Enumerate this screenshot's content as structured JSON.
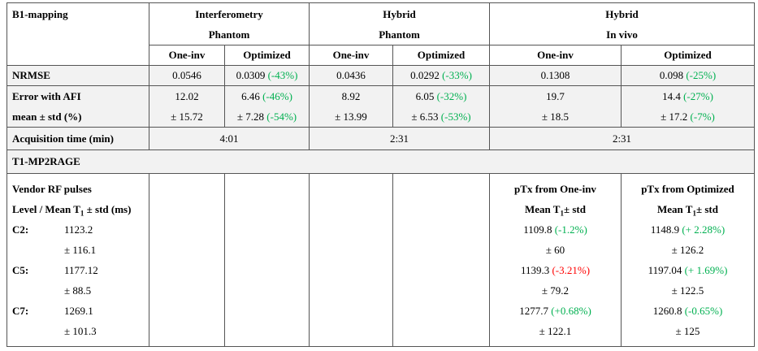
{
  "header": {
    "title": "B1-mapping",
    "groups": [
      {
        "line1": "Interferometry",
        "line2": "Phantom"
      },
      {
        "line1": "Hybrid",
        "line2": "Phantom"
      },
      {
        "line1": "Hybrid",
        "line2": "In vivo"
      }
    ],
    "subheaders": [
      "One-inv",
      "Optimized",
      "One-inv",
      "Optimized",
      "One-inv",
      "Optimized"
    ]
  },
  "nrmse": {
    "label": "NRMSE",
    "cells": [
      {
        "value": "0.0546"
      },
      {
        "value": "0.0309",
        "change": {
          "text": "(-43%)",
          "color": "#00b050"
        }
      },
      {
        "value": "0.0436"
      },
      {
        "value": "0.0292",
        "change": {
          "text": "(-33%)",
          "color": "#00b050"
        }
      },
      {
        "value": "0.1308"
      },
      {
        "value": "0.098",
        "change": {
          "text": "(-25%)",
          "color": "#00b050"
        }
      }
    ]
  },
  "afi_error": {
    "label_line1": "Error with AFI",
    "label_line2": "mean ± std (%)",
    "cells": [
      {
        "mean": "12.02",
        "std": "± 15.72"
      },
      {
        "mean": "6.46",
        "mean_change": {
          "text": "(-46%)",
          "color": "#00b050"
        },
        "std": "± 7.28",
        "std_change": {
          "text": "(-54%)",
          "color": "#00b050"
        }
      },
      {
        "mean": "8.92",
        "std": "± 13.99"
      },
      {
        "mean": "6.05",
        "mean_change": {
          "text": "(-32%)",
          "color": "#00b050"
        },
        "std": "± 6.53",
        "std_change": {
          "text": "(-53%)",
          "color": "#00b050"
        }
      },
      {
        "mean": "19.7",
        "std": "± 18.5"
      },
      {
        "mean": "14.4",
        "mean_change": {
          "text": "(-27%)",
          "color": "#00b050"
        },
        "std": "± 17.2",
        "std_change": {
          "text": "(-7%)",
          "color": "#00b050"
        }
      }
    ]
  },
  "acquisition": {
    "label": "Acquisition time (min)",
    "values": [
      "4:01",
      "2:31",
      "2:31"
    ]
  },
  "t1": {
    "title": "T1-MP2RAGE",
    "vendor_label": "Vendor RF pulses",
    "level_label": {
      "pre": "Level / Mean T",
      "sub": "1",
      "post": " ± std (ms)"
    },
    "ptx_headers": [
      {
        "line1": "pTx from One-inv",
        "line2": {
          "pre": "Mean T",
          "sub": "1",
          "post": "± std"
        }
      },
      {
        "line1": "pTx from Optimized",
        "line2": {
          "pre": "Mean T",
          "sub": "1",
          "post": "± std"
        }
      }
    ],
    "levels": [
      {
        "name": "C2:",
        "vendor_mean": "1123.2",
        "vendor_std": "± 116.1",
        "ptx": [
          {
            "mean": "1109.8",
            "change": {
              "text": "(-1.2%)",
              "color": "#00b050"
            },
            "std": "± 60"
          },
          {
            "mean": "1148.9",
            "change": {
              "text": "(+ 2.28%)",
              "color": "#00b050"
            },
            "std": "± 126.2"
          }
        ]
      },
      {
        "name": "C5:",
        "vendor_mean": "1177.12",
        "vendor_std": "± 88.5",
        "ptx": [
          {
            "mean": "1139.3",
            "change": {
              "text": "(-3.21%)",
              "color": "#ff0000"
            },
            "std": "± 79.2"
          },
          {
            "mean": "1197.04",
            "change": {
              "text": "(+ 1.69%)",
              "color": "#00b050"
            },
            "std": "± 122.5"
          }
        ]
      },
      {
        "name": "C7:",
        "vendor_mean": "1269.1",
        "vendor_std": "± 101.3",
        "ptx": [
          {
            "mean": "1277.7",
            "change": {
              "text": "(+0.68%)",
              "color": "#00b050"
            },
            "std": "± 122.1"
          },
          {
            "mean": "1260.8",
            "change": {
              "text": "(-0.65%)",
              "color": "#00b050"
            },
            "std": "± 125"
          }
        ]
      }
    ]
  }
}
